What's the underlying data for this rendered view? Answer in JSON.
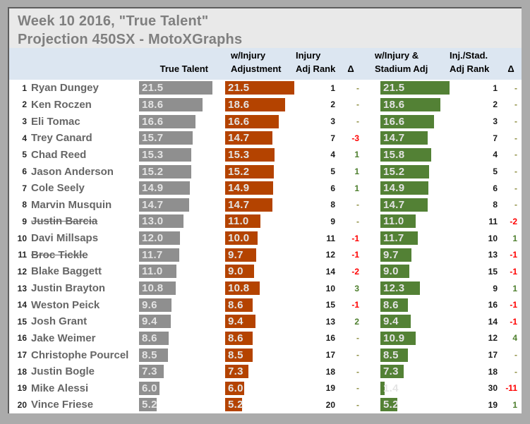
{
  "title": {
    "line1": "Week 10 2016, \"True Talent\"",
    "line2": "Projection 450SX - MotoXGraphs"
  },
  "headers": {
    "true_talent": "True Talent",
    "w_injury_line1": "w/Injury",
    "w_injury_line2": "Adjustment",
    "injury_rank_line1": "Injury",
    "injury_rank_line2": "Adj Rank",
    "delta1": "Δ",
    "stadium_line1": "w/Injury &",
    "stadium_line2": "Stadium Adj",
    "stadium_rank_line1": "Inj./Stad.",
    "stadium_rank_line2": "Adj Rank",
    "delta2": "Δ"
  },
  "colors": {
    "title_bg": "#E9E9E9",
    "title_text": "#7F7F7F",
    "header_bg": "#DCE6F1",
    "gray_bar": "#8F8F8F",
    "orange_bar": "#B44300",
    "green_bar": "#538135",
    "delta_positive": "#4E7F2E",
    "delta_negative": "#FF0000",
    "delta_dash": "#8B8B3D",
    "outer_frame": "#ABABAB"
  },
  "chart_data": {
    "type": "table",
    "title": "Week 10 2016, \"True Talent\" Projection 450SX - MotoXGraphs",
    "bar_max": 21.5,
    "columns": [
      "Rank",
      "Rider",
      "True Talent",
      "w/Injury Adjustment",
      "Injury Adj Rank",
      "Δ",
      "w/Injury & Stadium Adj",
      "Inj./Stad. Adj Rank",
      "Δ"
    ],
    "rows": [
      {
        "rank": "1",
        "name": "Ryan Dungey",
        "struck": false,
        "true_talent": "21.5",
        "injury_adj": "21.5",
        "injury_rank": "1",
        "delta1": "-",
        "stadium_adj": "21.5",
        "stadium_rank": "1",
        "delta2": "-"
      },
      {
        "rank": "2",
        "name": "Ken Roczen",
        "struck": false,
        "true_talent": "18.6",
        "injury_adj": "18.6",
        "injury_rank": "2",
        "delta1": "-",
        "stadium_adj": "18.6",
        "stadium_rank": "2",
        "delta2": "-"
      },
      {
        "rank": "3",
        "name": "Eli Tomac",
        "struck": false,
        "true_talent": "16.6",
        "injury_adj": "16.6",
        "injury_rank": "3",
        "delta1": "-",
        "stadium_adj": "16.6",
        "stadium_rank": "3",
        "delta2": "-"
      },
      {
        "rank": "4",
        "name": "Trey Canard",
        "struck": false,
        "true_talent": "15.7",
        "injury_adj": "14.7",
        "injury_rank": "7",
        "delta1": "-3",
        "stadium_adj": "14.7",
        "stadium_rank": "7",
        "delta2": "-"
      },
      {
        "rank": "5",
        "name": "Chad Reed",
        "struck": false,
        "true_talent": "15.3",
        "injury_adj": "15.3",
        "injury_rank": "4",
        "delta1": "1",
        "stadium_adj": "15.8",
        "stadium_rank": "4",
        "delta2": "-"
      },
      {
        "rank": "6",
        "name": "Jason Anderson",
        "struck": false,
        "true_talent": "15.2",
        "injury_adj": "15.2",
        "injury_rank": "5",
        "delta1": "1",
        "stadium_adj": "15.2",
        "stadium_rank": "5",
        "delta2": "-"
      },
      {
        "rank": "7",
        "name": "Cole Seely",
        "struck": false,
        "true_talent": "14.9",
        "injury_adj": "14.9",
        "injury_rank": "6",
        "delta1": "1",
        "stadium_adj": "14.9",
        "stadium_rank": "6",
        "delta2": "-"
      },
      {
        "rank": "8",
        "name": "Marvin Musquin",
        "struck": false,
        "true_talent": "14.7",
        "injury_adj": "14.7",
        "injury_rank": "8",
        "delta1": "-",
        "stadium_adj": "14.7",
        "stadium_rank": "8",
        "delta2": "-"
      },
      {
        "rank": "9",
        "name": "Justin Barcia",
        "struck": true,
        "true_talent": "13.0",
        "injury_adj": "11.0",
        "injury_rank": "9",
        "delta1": "-",
        "stadium_adj": "11.0",
        "stadium_rank": "11",
        "delta2": "-2"
      },
      {
        "rank": "10",
        "name": "Davi Millsaps",
        "struck": false,
        "true_talent": "12.0",
        "injury_adj": "10.0",
        "injury_rank": "11",
        "delta1": "-1",
        "stadium_adj": "11.7",
        "stadium_rank": "10",
        "delta2": "1"
      },
      {
        "rank": "11",
        "name": "Broc Tickle",
        "struck": true,
        "true_talent": "11.7",
        "injury_adj": "9.7",
        "injury_rank": "12",
        "delta1": "-1",
        "stadium_adj": "9.7",
        "stadium_rank": "13",
        "delta2": "-1"
      },
      {
        "rank": "12",
        "name": "Blake Baggett",
        "struck": false,
        "true_talent": "11.0",
        "injury_adj": "9.0",
        "injury_rank": "14",
        "delta1": "-2",
        "stadium_adj": "9.0",
        "stadium_rank": "15",
        "delta2": "-1"
      },
      {
        "rank": "13",
        "name": "Justin Brayton",
        "struck": false,
        "true_talent": "10.8",
        "injury_adj": "10.8",
        "injury_rank": "10",
        "delta1": "3",
        "stadium_adj": "12.3",
        "stadium_rank": "9",
        "delta2": "1"
      },
      {
        "rank": "14",
        "name": "Weston Peick",
        "struck": false,
        "true_talent": "9.6",
        "injury_adj": "8.6",
        "injury_rank": "15",
        "delta1": "-1",
        "stadium_adj": "8.6",
        "stadium_rank": "16",
        "delta2": "-1"
      },
      {
        "rank": "15",
        "name": "Josh Grant",
        "struck": false,
        "true_talent": "9.4",
        "injury_adj": "9.4",
        "injury_rank": "13",
        "delta1": "2",
        "stadium_adj": "9.4",
        "stadium_rank": "14",
        "delta2": "-1"
      },
      {
        "rank": "16",
        "name": "Jake Weimer",
        "struck": false,
        "true_talent": "8.6",
        "injury_adj": "8.6",
        "injury_rank": "16",
        "delta1": "-",
        "stadium_adj": "10.9",
        "stadium_rank": "12",
        "delta2": "4"
      },
      {
        "rank": "17",
        "name": "Christophe Pourcel",
        "struck": false,
        "true_talent": "8.5",
        "injury_adj": "8.5",
        "injury_rank": "17",
        "delta1": "-",
        "stadium_adj": "8.5",
        "stadium_rank": "17",
        "delta2": "-"
      },
      {
        "rank": "18",
        "name": "Justin Bogle",
        "struck": false,
        "true_talent": "7.3",
        "injury_adj": "7.3",
        "injury_rank": "18",
        "delta1": "-",
        "stadium_adj": "7.3",
        "stadium_rank": "18",
        "delta2": "-"
      },
      {
        "rank": "19",
        "name": "Mike Alessi",
        "struck": false,
        "true_talent": "6.0",
        "injury_adj": "6.0",
        "injury_rank": "19",
        "delta1": "-",
        "stadium_adj": "1.4",
        "stadium_rank": "30",
        "delta2": "-11"
      },
      {
        "rank": "20",
        "name": "Vince Friese",
        "struck": false,
        "true_talent": "5.2",
        "injury_adj": "5.2",
        "injury_rank": "20",
        "delta1": "-",
        "stadium_adj": "5.2",
        "stadium_rank": "19",
        "delta2": "1"
      }
    ]
  }
}
